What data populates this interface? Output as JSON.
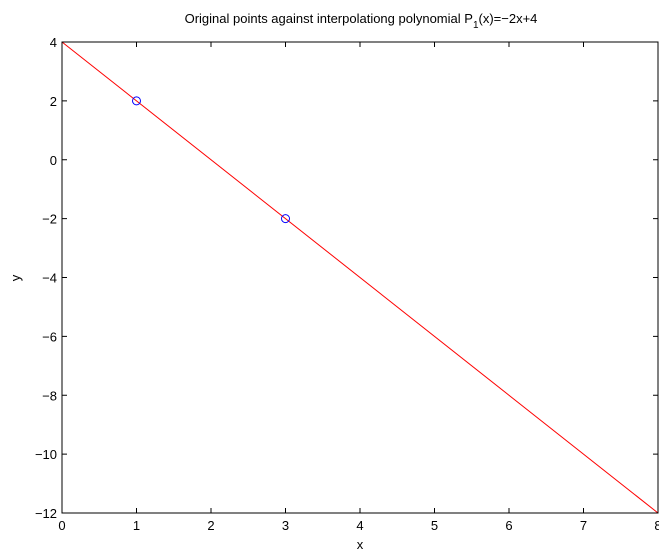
{
  "chart_data": {
    "type": "line",
    "title": "Original points against interpolationg polynomial P",
    "title_subscript": "1",
    "title_suffix": "(x)=−2x+4",
    "xlabel": "x",
    "ylabel": "y",
    "xlim": [
      0,
      8
    ],
    "ylim": [
      -12,
      4
    ],
    "grid": false,
    "x_ticks": [
      0,
      1,
      2,
      3,
      4,
      5,
      6,
      7,
      8
    ],
    "x_tick_labels": [
      "0",
      "1",
      "2",
      "3",
      "4",
      "5",
      "6",
      "7",
      "8"
    ],
    "y_ticks": [
      4,
      2,
      0,
      -2,
      -4,
      -6,
      -8,
      -10,
      -12
    ],
    "y_tick_labels": [
      "4",
      "2",
      "0",
      "−2",
      "−4",
      "−6",
      "−8",
      "−10",
      "−12"
    ],
    "series": [
      {
        "type": "line",
        "color": "#ff0000",
        "x": [
          0,
          8
        ],
        "y": [
          4,
          -12
        ]
      },
      {
        "type": "scatter",
        "marker": "circle-open",
        "color": "#0000ff",
        "x": [
          1,
          3
        ],
        "y": [
          2,
          -2
        ]
      }
    ]
  }
}
